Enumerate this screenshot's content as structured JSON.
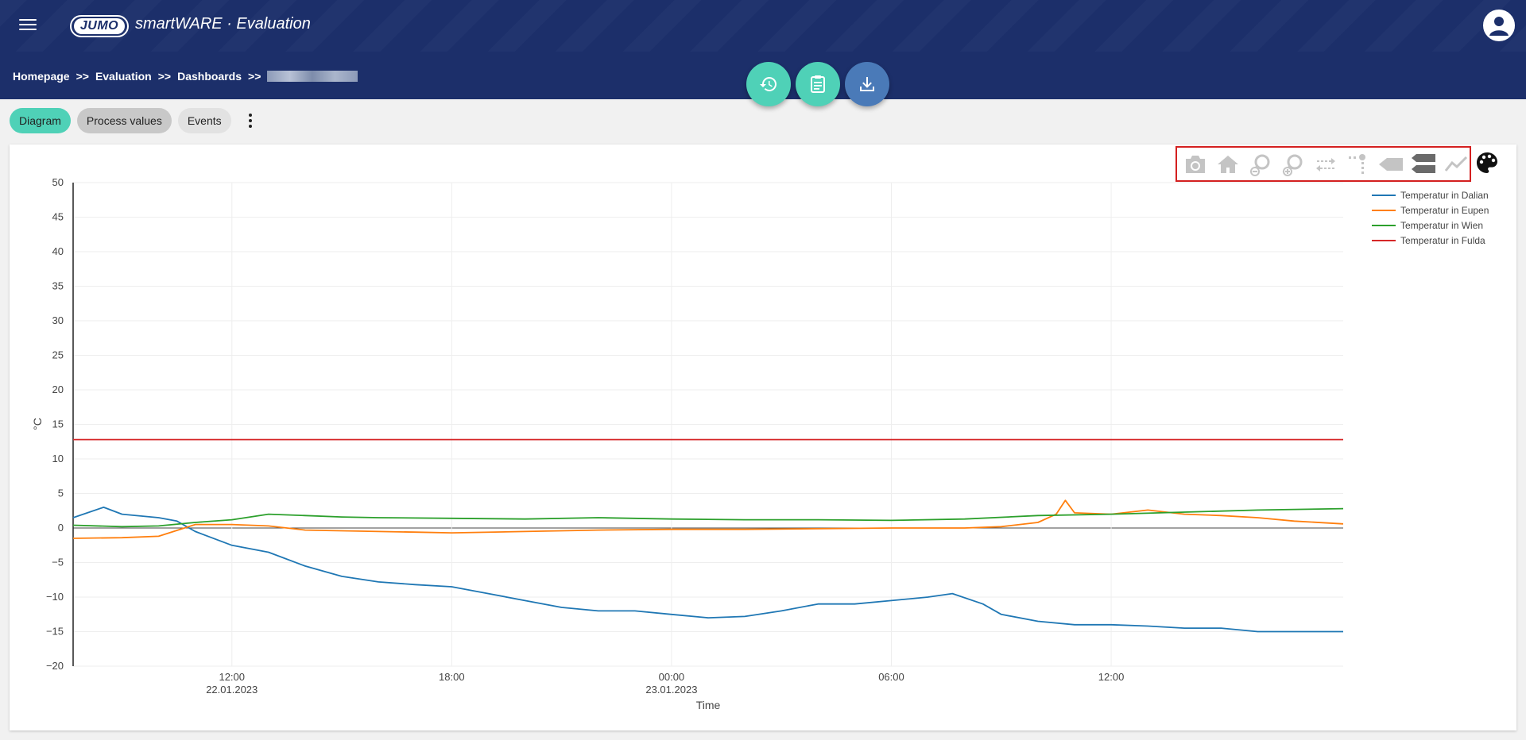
{
  "header": {
    "logo_text": "JUMO",
    "app_title": "smartWARE · Evaluation"
  },
  "breadcrumb": {
    "items": [
      "Homepage",
      "Evaluation",
      "Dashboards"
    ],
    "separator": ">>"
  },
  "tabs": [
    {
      "label": "Diagram",
      "active": true
    },
    {
      "label": "Process values",
      "active": false
    },
    {
      "label": "Events",
      "active": false
    }
  ],
  "fab_actions": [
    {
      "icon": "history-icon",
      "color": "#4fd1b7"
    },
    {
      "icon": "clipboard-icon",
      "color": "#4fd1b7"
    },
    {
      "icon": "download-icon",
      "color": "#4a7ab8"
    }
  ],
  "modebar": {
    "buttons": [
      "camera-icon",
      "home-icon",
      "zoom-out-icon",
      "zoom-in-icon",
      "pan-icon",
      "spike-lines-icon",
      "hover-closest-icon",
      "hover-compare-icon",
      "line-style-icon"
    ],
    "palette_icon": "palette-icon"
  },
  "colors": {
    "header": "#1c2f6a",
    "accent": "#4fd1b7",
    "highlight_box": "#d42020"
  },
  "chart_data": {
    "type": "line",
    "xlabel": "Time",
    "ylabel": "°C",
    "ylim": [
      -20,
      50
    ],
    "yticks": [
      50,
      45,
      40,
      35,
      30,
      25,
      20,
      15,
      10,
      5,
      0,
      -5,
      -10,
      -15,
      -20
    ],
    "xticks": [
      {
        "time": "12:00",
        "date": "22.01.2023"
      },
      {
        "time": "18:00",
        "date": ""
      },
      {
        "time": "00:00",
        "date": "23.01.2023"
      },
      {
        "time": "06:00",
        "date": ""
      },
      {
        "time": "12:00",
        "date": ""
      }
    ],
    "x_range": [
      "2023-01-22T07:40",
      "2023-01-23T18:20"
    ],
    "grid": true,
    "legend_position": "top-right",
    "series": [
      {
        "name": "Temperatur in Dalian",
        "color": "#1f77b4",
        "x": [
          "2023-01-22T07:40",
          "2023-01-22T08:30",
          "2023-01-22T09:00",
          "2023-01-22T10:00",
          "2023-01-22T10:30",
          "2023-01-22T11:00",
          "2023-01-22T12:00",
          "2023-01-22T13:00",
          "2023-01-22T14:00",
          "2023-01-22T15:00",
          "2023-01-22T16:00",
          "2023-01-22T17:00",
          "2023-01-22T18:00",
          "2023-01-22T19:00",
          "2023-01-22T20:00",
          "2023-01-22T21:00",
          "2023-01-22T22:00",
          "2023-01-22T23:00",
          "2023-01-23T00:00",
          "2023-01-23T01:00",
          "2023-01-23T02:00",
          "2023-01-23T03:00",
          "2023-01-23T04:00",
          "2023-01-23T05:00",
          "2023-01-23T06:00",
          "2023-01-23T07:00",
          "2023-01-23T07:40",
          "2023-01-23T08:30",
          "2023-01-23T09:00",
          "2023-01-23T10:00",
          "2023-01-23T11:00",
          "2023-01-23T12:00",
          "2023-01-23T13:00",
          "2023-01-23T14:00",
          "2023-01-23T15:00",
          "2023-01-23T16:00",
          "2023-01-23T17:00",
          "2023-01-23T18:20"
        ],
        "y": [
          1.5,
          3,
          2,
          1.5,
          1,
          -0.5,
          -2.5,
          -3.5,
          -5.5,
          -7,
          -7.8,
          -8.2,
          -8.5,
          -9.5,
          -10.5,
          -11.5,
          -12,
          -12,
          -12.5,
          -13,
          -12.8,
          -12,
          -11,
          -11,
          -10.5,
          -10,
          -9.5,
          -11,
          -12.5,
          -13.5,
          -14,
          -14,
          -14.2,
          -14.5,
          -14.5,
          -15,
          -15,
          -15
        ]
      },
      {
        "name": "Temperatur in Eupen",
        "color": "#ff7f0e",
        "x": [
          "2023-01-22T07:40",
          "2023-01-22T09:00",
          "2023-01-22T10:00",
          "2023-01-22T11:00",
          "2023-01-22T12:00",
          "2023-01-22T13:00",
          "2023-01-22T14:00",
          "2023-01-22T15:00",
          "2023-01-22T16:00",
          "2023-01-22T17:00",
          "2023-01-22T18:00",
          "2023-01-22T20:00",
          "2023-01-22T22:00",
          "2023-01-23T00:00",
          "2023-01-23T02:00",
          "2023-01-23T04:00",
          "2023-01-23T06:00",
          "2023-01-23T08:00",
          "2023-01-23T09:00",
          "2023-01-23T10:00",
          "2023-01-23T10:30",
          "2023-01-23T10:45",
          "2023-01-23T11:00",
          "2023-01-23T12:00",
          "2023-01-23T13:00",
          "2023-01-23T14:00",
          "2023-01-23T15:00",
          "2023-01-23T16:00",
          "2023-01-23T17:00",
          "2023-01-23T18:20"
        ],
        "y": [
          -1.5,
          -1.4,
          -1.2,
          0.5,
          0.5,
          0.3,
          -0.3,
          -0.4,
          -0.5,
          -0.6,
          -0.7,
          -0.5,
          -0.3,
          -0.2,
          -0.2,
          -0.1,
          0,
          0,
          0.2,
          0.8,
          2,
          4,
          2.2,
          2,
          2.6,
          2,
          1.8,
          1.5,
          1,
          0.6
        ]
      },
      {
        "name": "Temperatur in Wien",
        "color": "#2ca02c",
        "x": [
          "2023-01-22T07:40",
          "2023-01-22T09:00",
          "2023-01-22T10:00",
          "2023-01-22T11:00",
          "2023-01-22T12:00",
          "2023-01-22T13:00",
          "2023-01-22T14:00",
          "2023-01-22T15:00",
          "2023-01-22T16:00",
          "2023-01-22T18:00",
          "2023-01-22T20:00",
          "2023-01-22T22:00",
          "2023-01-23T00:00",
          "2023-01-23T02:00",
          "2023-01-23T04:00",
          "2023-01-23T06:00",
          "2023-01-23T08:00",
          "2023-01-23T10:00",
          "2023-01-23T12:00",
          "2023-01-23T14:00",
          "2023-01-23T16:00",
          "2023-01-23T18:20"
        ],
        "y": [
          0.4,
          0.2,
          0.3,
          0.8,
          1.2,
          2,
          1.8,
          1.6,
          1.5,
          1.4,
          1.3,
          1.5,
          1.3,
          1.2,
          1.2,
          1.1,
          1.3,
          1.8,
          2,
          2.3,
          2.6,
          2.8
        ]
      },
      {
        "name": "Temperatur in Fulda",
        "color": "#d62728",
        "x": [
          "2023-01-22T07:40",
          "2023-01-23T18:20"
        ],
        "y": [
          12.8,
          12.8
        ]
      }
    ]
  }
}
